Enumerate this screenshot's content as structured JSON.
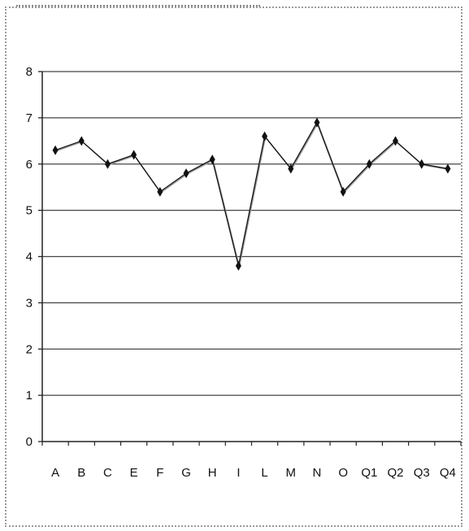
{
  "chart_data": {
    "type": "line",
    "title": "",
    "xlabel": "",
    "ylabel": "",
    "categories": [
      "A",
      "B",
      "C",
      "E",
      "F",
      "G",
      "H",
      "I",
      "L",
      "M",
      "N",
      "O",
      "Q1",
      "Q2",
      "Q3",
      "Q4"
    ],
    "series": [
      {
        "values": [
          6.3,
          6.5,
          6.0,
          6.2,
          5.4,
          5.8,
          6.1,
          3.8,
          6.6,
          5.9,
          6.9,
          5.4,
          6.0,
          6.5,
          6.0,
          5.9
        ]
      }
    ],
    "ylim": [
      0,
      8
    ],
    "yticks": [
      0,
      1,
      2,
      3,
      4,
      5,
      6,
      7,
      8
    ],
    "grid": true,
    "legend": "none",
    "colors": {
      "line": "#111111",
      "grid": "#444444",
      "marker": "#111111"
    }
  }
}
